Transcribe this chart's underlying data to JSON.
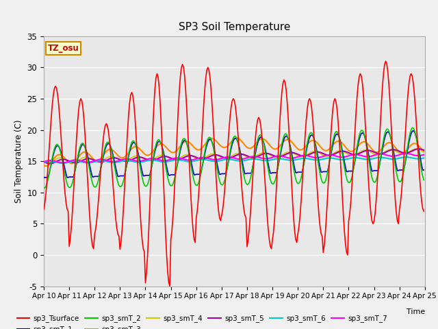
{
  "title": "SP3 Soil Temperature",
  "ylabel": "Soil Temperature (C)",
  "xlabel": "Time",
  "ylim": [
    -5,
    35
  ],
  "xlim": [
    0,
    15
  ],
  "xtick_labels": [
    "Apr 10",
    "Apr 11",
    "Apr 12",
    "Apr 13",
    "Apr 14",
    "Apr 15",
    "Apr 16",
    "Apr 17",
    "Apr 18",
    "Apr 19",
    "Apr 20",
    "Apr 21",
    "Apr 22",
    "Apr 23",
    "Apr 24",
    "Apr 25"
  ],
  "ytick_values": [
    -5,
    0,
    5,
    10,
    15,
    20,
    25,
    30,
    35
  ],
  "tz_label": "TZ_osu",
  "bg_color": "#e8e8e8",
  "fig_bg_color": "#f0f0f0",
  "series_colors": {
    "sp3_Tsurface": "#ff0000",
    "sp3_smT_1": "#0000cc",
    "sp3_smT_2": "#00cc00",
    "sp3_smT_3": "#ff8800",
    "sp3_smT_4": "#cccc00",
    "sp3_smT_5": "#aa00aa",
    "sp3_smT_6": "#00cccc",
    "sp3_smT_7": "#ff00ff"
  },
  "peaks": [
    27,
    25,
    21,
    26,
    29,
    30.5,
    30,
    25,
    22,
    28,
    25,
    25,
    29,
    31,
    29
  ],
  "mins": [
    7,
    1,
    3,
    0.5,
    -5,
    2,
    5.5,
    6,
    1,
    2,
    3,
    0,
    5,
    5,
    7
  ]
}
